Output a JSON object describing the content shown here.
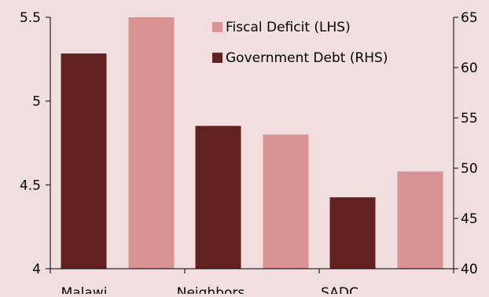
{
  "chart_data": {
    "type": "bar",
    "categories": [
      "Malawi",
      "Neighbors",
      "SADC"
    ],
    "series": [
      {
        "name": "Government Debt (RHS)",
        "axis": "right",
        "color": "#622222",
        "values": [
          61.4,
          54.2,
          47.1
        ]
      },
      {
        "name": "Fiscal Deficit (LHS)",
        "axis": "left",
        "color": "#d99393",
        "values": [
          5.5,
          4.8,
          4.58
        ]
      }
    ],
    "legend": [
      {
        "label": "Fiscal Deficit (LHS)",
        "color": "#d99393"
      },
      {
        "label": "Government Debt (RHS)",
        "color": "#622222"
      }
    ],
    "legend_position": "top-right",
    "y_left": {
      "min": 4,
      "max": 5.5,
      "ticks": [
        "4",
        "4.5",
        "5",
        "5.5"
      ]
    },
    "y_right": {
      "min": 40,
      "max": 65,
      "ticks": [
        "40",
        "45",
        "50",
        "55",
        "60",
        "65"
      ]
    },
    "grid": false
  }
}
